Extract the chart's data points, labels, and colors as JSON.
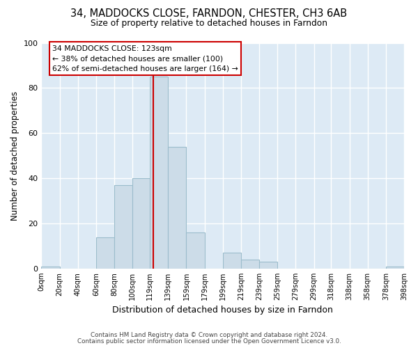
{
  "title": "34, MADDOCKS CLOSE, FARNDON, CHESTER, CH3 6AB",
  "subtitle": "Size of property relative to detached houses in Farndon",
  "xlabel": "Distribution of detached houses by size in Farndon",
  "ylabel": "Number of detached properties",
  "bin_edges": [
    0,
    20,
    40,
    60,
    80,
    100,
    119,
    139,
    159,
    179,
    199,
    219,
    239,
    259,
    279,
    299,
    318,
    338,
    358,
    378,
    398
  ],
  "bin_labels": [
    "0sqm",
    "20sqm",
    "40sqm",
    "60sqm",
    "80sqm",
    "100sqm",
    "119sqm",
    "139sqm",
    "159sqm",
    "179sqm",
    "199sqm",
    "219sqm",
    "239sqm",
    "259sqm",
    "279sqm",
    "299sqm",
    "318sqm",
    "338sqm",
    "358sqm",
    "378sqm",
    "398sqm"
  ],
  "counts": [
    1,
    0,
    0,
    14,
    37,
    40,
    85,
    54,
    16,
    0,
    7,
    4,
    3,
    0,
    0,
    0,
    0,
    0,
    0,
    1
  ],
  "bar_color": "#ccdce8",
  "bar_edge_color": "#9bbccc",
  "vline_x": 123,
  "vline_color": "#cc0000",
  "annotation_title": "34 MADDOCKS CLOSE: 123sqm",
  "annotation_line1": "← 38% of detached houses are smaller (100)",
  "annotation_line2": "62% of semi-detached houses are larger (164) →",
  "annotation_box_facecolor": "#ffffff",
  "annotation_box_edgecolor": "#cc0000",
  "ylim": [
    0,
    100
  ],
  "yticks": [
    0,
    20,
    40,
    60,
    80,
    100
  ],
  "plot_bg_color": "#ddeaf5",
  "fig_bg_color": "#ffffff",
  "grid_color": "#ffffff",
  "footer1": "Contains HM Land Registry data © Crown copyright and database right 2024.",
  "footer2": "Contains public sector information licensed under the Open Government Licence v3.0."
}
